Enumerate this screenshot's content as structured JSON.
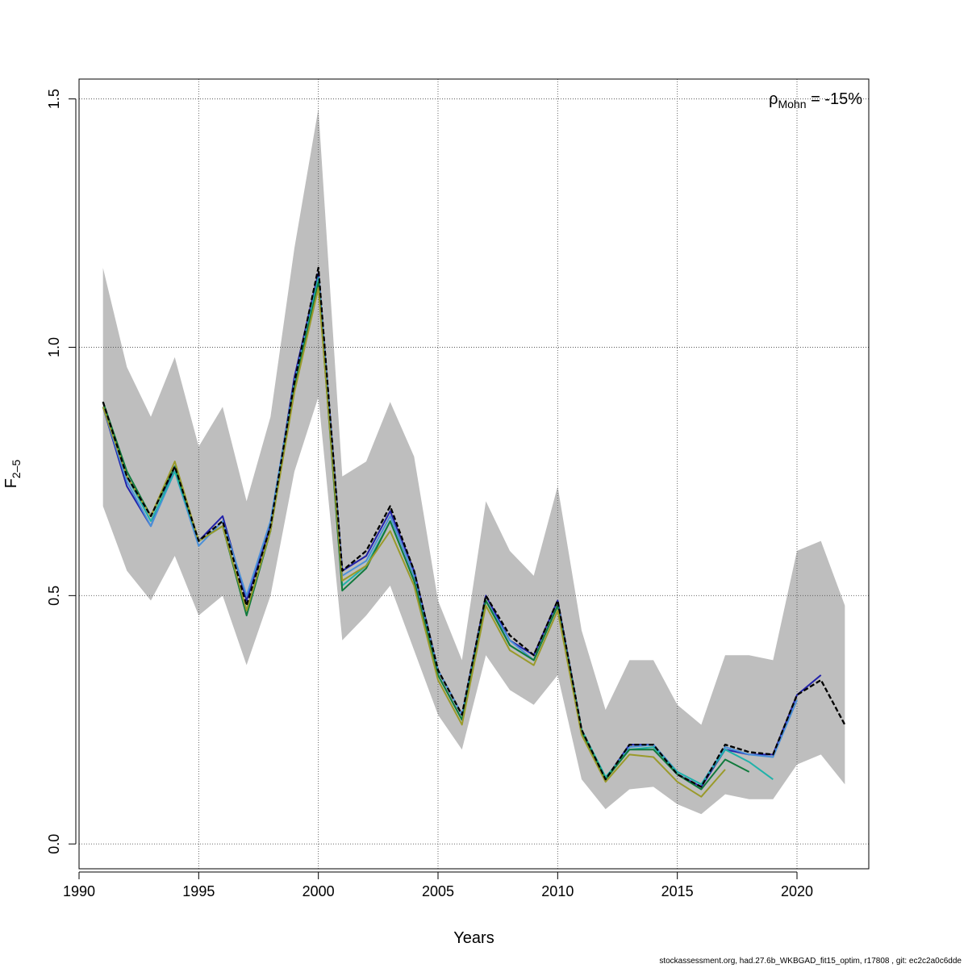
{
  "chart_data": {
    "type": "line",
    "xlabel": "Years",
    "ylabel_main": "F",
    "ylabel_sub": "2–5",
    "xlim": [
      1990,
      2023
    ],
    "ylim": [
      -0.05,
      1.54
    ],
    "x_ticks": [
      1990,
      1995,
      2000,
      2005,
      2010,
      2015,
      2020
    ],
    "y_ticks": [
      0.0,
      0.5,
      1.0,
      1.5
    ],
    "y_tick_labels": [
      "0.0",
      "0.5",
      "1.0",
      "1.5"
    ],
    "grid": true,
    "mohn_prefix": "ρ",
    "mohn_sub": "Mohn",
    "mohn_value": " = -15%",
    "confidence_band": {
      "color": "#bebebe",
      "x": [
        1991,
        1992,
        1993,
        1994,
        1995,
        1996,
        1997,
        1998,
        1999,
        2000,
        2001,
        2002,
        2003,
        2004,
        2005,
        2006,
        2007,
        2008,
        2009,
        2010,
        2011,
        2012,
        2013,
        2014,
        2015,
        2016,
        2017,
        2018,
        2019,
        2020,
        2021,
        2022
      ],
      "lower": [
        0.68,
        0.55,
        0.49,
        0.58,
        0.46,
        0.5,
        0.36,
        0.5,
        0.75,
        0.9,
        0.41,
        0.46,
        0.52,
        0.39,
        0.26,
        0.19,
        0.38,
        0.31,
        0.28,
        0.34,
        0.13,
        0.07,
        0.11,
        0.115,
        0.08,
        0.06,
        0.1,
        0.09,
        0.09,
        0.16,
        0.18,
        0.12
      ],
      "upper": [
        1.16,
        0.96,
        0.86,
        0.98,
        0.8,
        0.88,
        0.69,
        0.86,
        1.2,
        1.48,
        0.74,
        0.77,
        0.89,
        0.78,
        0.49,
        0.37,
        0.69,
        0.59,
        0.54,
        0.72,
        0.43,
        0.27,
        0.37,
        0.37,
        0.28,
        0.24,
        0.38,
        0.38,
        0.37,
        0.59,
        0.61,
        0.48
      ]
    },
    "series": [
      {
        "color": "#000000",
        "dashed": true,
        "x": [
          1991,
          1992,
          1993,
          1994,
          1995,
          1996,
          1997,
          1998,
          1999,
          2000,
          2001,
          2002,
          2003,
          2004,
          2005,
          2006,
          2007,
          2008,
          2009,
          2010,
          2011,
          2012,
          2013,
          2014,
          2015,
          2016,
          2017,
          2018,
          2019,
          2020,
          2021,
          2022
        ],
        "values": [
          0.89,
          0.74,
          0.66,
          0.76,
          0.61,
          0.65,
          0.48,
          0.64,
          0.93,
          1.16,
          0.55,
          0.59,
          0.68,
          0.55,
          0.35,
          0.26,
          0.5,
          0.42,
          0.38,
          0.49,
          0.23,
          0.13,
          0.2,
          0.2,
          0.14,
          0.115,
          0.2,
          0.185,
          0.18,
          0.3,
          0.33,
          0.24
        ]
      },
      {
        "color": "#2222aa",
        "dashed": false,
        "x": [
          1991,
          1992,
          1993,
          1994,
          1995,
          1996,
          1997,
          1998,
          1999,
          2000,
          2001,
          2002,
          2003,
          2004,
          2005,
          2006,
          2007,
          2008,
          2009,
          2010,
          2011,
          2012,
          2013,
          2014,
          2015,
          2016,
          2017,
          2018,
          2019,
          2020,
          2021
        ],
        "values": [
          0.88,
          0.72,
          0.64,
          0.76,
          0.61,
          0.66,
          0.49,
          0.64,
          0.94,
          1.15,
          0.55,
          0.58,
          0.67,
          0.55,
          0.35,
          0.26,
          0.5,
          0.41,
          0.38,
          0.49,
          0.23,
          0.13,
          0.2,
          0.2,
          0.14,
          0.115,
          0.19,
          0.18,
          0.18,
          0.3,
          0.34
        ]
      },
      {
        "color": "#4a90d9",
        "dashed": false,
        "x": [
          1991,
          1992,
          1993,
          1994,
          1995,
          1996,
          1997,
          1998,
          1999,
          2000,
          2001,
          2002,
          2003,
          2004,
          2005,
          2006,
          2007,
          2008,
          2009,
          2010,
          2011,
          2012,
          2013,
          2014,
          2015,
          2016,
          2017,
          2018,
          2019,
          2020
        ],
        "values": [
          0.88,
          0.73,
          0.64,
          0.75,
          0.6,
          0.65,
          0.5,
          0.65,
          0.93,
          1.14,
          0.54,
          0.57,
          0.66,
          0.54,
          0.35,
          0.26,
          0.49,
          0.41,
          0.37,
          0.48,
          0.23,
          0.13,
          0.195,
          0.2,
          0.145,
          0.12,
          0.195,
          0.18,
          0.175,
          0.29
        ]
      },
      {
        "color": "#20b2aa",
        "dashed": false,
        "x": [
          1991,
          1992,
          1993,
          1994,
          1995,
          1996,
          1997,
          1998,
          1999,
          2000,
          2001,
          2002,
          2003,
          2004,
          2005,
          2006,
          2007,
          2008,
          2009,
          2010,
          2011,
          2012,
          2013,
          2014,
          2015,
          2016,
          2017,
          2018,
          2019
        ],
        "values": [
          0.88,
          0.74,
          0.65,
          0.75,
          0.61,
          0.64,
          0.47,
          0.63,
          0.92,
          1.14,
          0.52,
          0.56,
          0.65,
          0.53,
          0.34,
          0.25,
          0.49,
          0.4,
          0.37,
          0.48,
          0.23,
          0.135,
          0.19,
          0.195,
          0.145,
          0.12,
          0.19,
          0.165,
          0.13
        ]
      },
      {
        "color": "#117a3d",
        "dashed": false,
        "x": [
          1991,
          1992,
          1993,
          1994,
          1995,
          1996,
          1997,
          1998,
          1999,
          2000,
          2001,
          2002,
          2003,
          2004,
          2005,
          2006,
          2007,
          2008,
          2009,
          2010,
          2011,
          2012,
          2013,
          2014,
          2015,
          2016,
          2017,
          2018
        ],
        "values": [
          0.89,
          0.75,
          0.66,
          0.76,
          0.61,
          0.64,
          0.46,
          0.63,
          0.92,
          1.13,
          0.51,
          0.555,
          0.65,
          0.53,
          0.34,
          0.25,
          0.49,
          0.4,
          0.37,
          0.48,
          0.225,
          0.13,
          0.19,
          0.19,
          0.14,
          0.11,
          0.17,
          0.145
        ]
      },
      {
        "color": "#9a9a2a",
        "dashed": false,
        "x": [
          1991,
          1992,
          1993,
          1994,
          1995,
          1996,
          1997,
          1998,
          1999,
          2000,
          2001,
          2002,
          2003,
          2004,
          2005,
          2006,
          2007,
          2008,
          2009,
          2010,
          2011,
          2012,
          2013,
          2014,
          2015,
          2016,
          2017
        ],
        "values": [
          0.88,
          0.74,
          0.66,
          0.77,
          0.61,
          0.64,
          0.47,
          0.63,
          0.91,
          1.12,
          0.53,
          0.56,
          0.63,
          0.52,
          0.33,
          0.24,
          0.48,
          0.39,
          0.36,
          0.47,
          0.22,
          0.125,
          0.18,
          0.175,
          0.125,
          0.095,
          0.15
        ]
      }
    ]
  },
  "footer": "stockassessment.org, had.27.6b_WKBGAD_fit15_optim, r17808 , git: ec2c2a0c6dde"
}
